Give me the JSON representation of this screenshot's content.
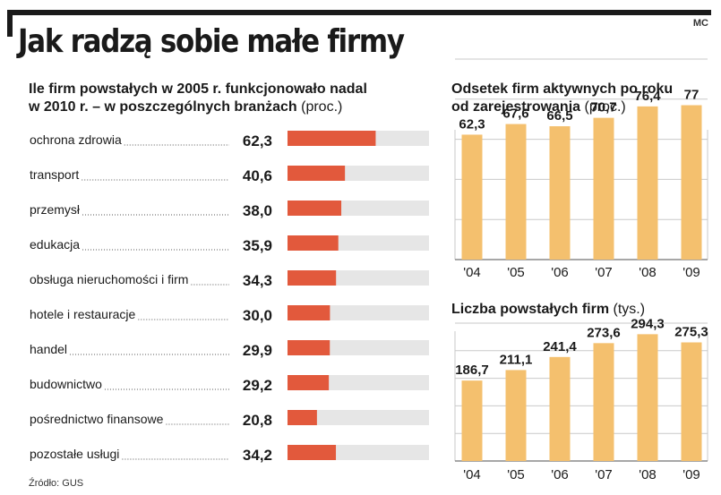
{
  "header": {
    "title": "Jak radzą sobie małe firmy",
    "credit": "MC",
    "source": "Źródło: GUS"
  },
  "colors": {
    "accent": "#E2593C",
    "track": "#E6E6E6",
    "gold": "#F4C06E",
    "ink": "#1A1A1A",
    "grid": "#C9C9C9"
  },
  "chart_data": [
    {
      "type": "bar",
      "orientation": "horizontal",
      "title_line1": "Ile firm powstałych w 2005 r. funkcjonowało nadal",
      "title_line2": "w 2010 r. – w poszczególnych branżach",
      "unit": "(proc.)",
      "xlim": [
        0,
        100
      ],
      "categories": [
        "ochrona zdrowia",
        "transport",
        "przemysł",
        "edukacja",
        "obsługa nieruchomości i firm",
        "hotele i restauracje",
        "handel",
        "budownictwo",
        "pośrednictwo finansowe",
        "pozostałe usługi"
      ],
      "values": [
        62.3,
        40.6,
        38.0,
        35.9,
        34.3,
        30.0,
        29.9,
        29.2,
        20.8,
        34.2
      ],
      "labels": [
        "62,3",
        "40,6",
        "38,0",
        "35,9",
        "34,3",
        "30,0",
        "29,9",
        "29,2",
        "20,8",
        "34,2"
      ]
    },
    {
      "type": "bar",
      "title_line1": "Odsetek firm aktywnych po roku",
      "title_line2": "od zarejestrowania",
      "unit": "(proc.)",
      "ylim": [
        0,
        100
      ],
      "categories": [
        "'04",
        "'05",
        "'06",
        "'07",
        "'08",
        "'09"
      ],
      "values": [
        62.3,
        67.6,
        66.5,
        70.7,
        76.4,
        77
      ],
      "labels": [
        "62,3",
        "67,6",
        "66,5",
        "70,7",
        "76,4",
        "77"
      ]
    },
    {
      "type": "bar",
      "title_line1": "Liczba powstałych firm",
      "unit": "(tys.)",
      "ylim": [
        0,
        320
      ],
      "categories": [
        "'04",
        "'05",
        "'06",
        "'07",
        "'08",
        "'09"
      ],
      "values": [
        186.7,
        211.1,
        241.4,
        273.6,
        294.3,
        275.3
      ],
      "labels": [
        "186,7",
        "211,1",
        "241,4",
        "273,6",
        "294,3",
        "275,3"
      ]
    }
  ]
}
